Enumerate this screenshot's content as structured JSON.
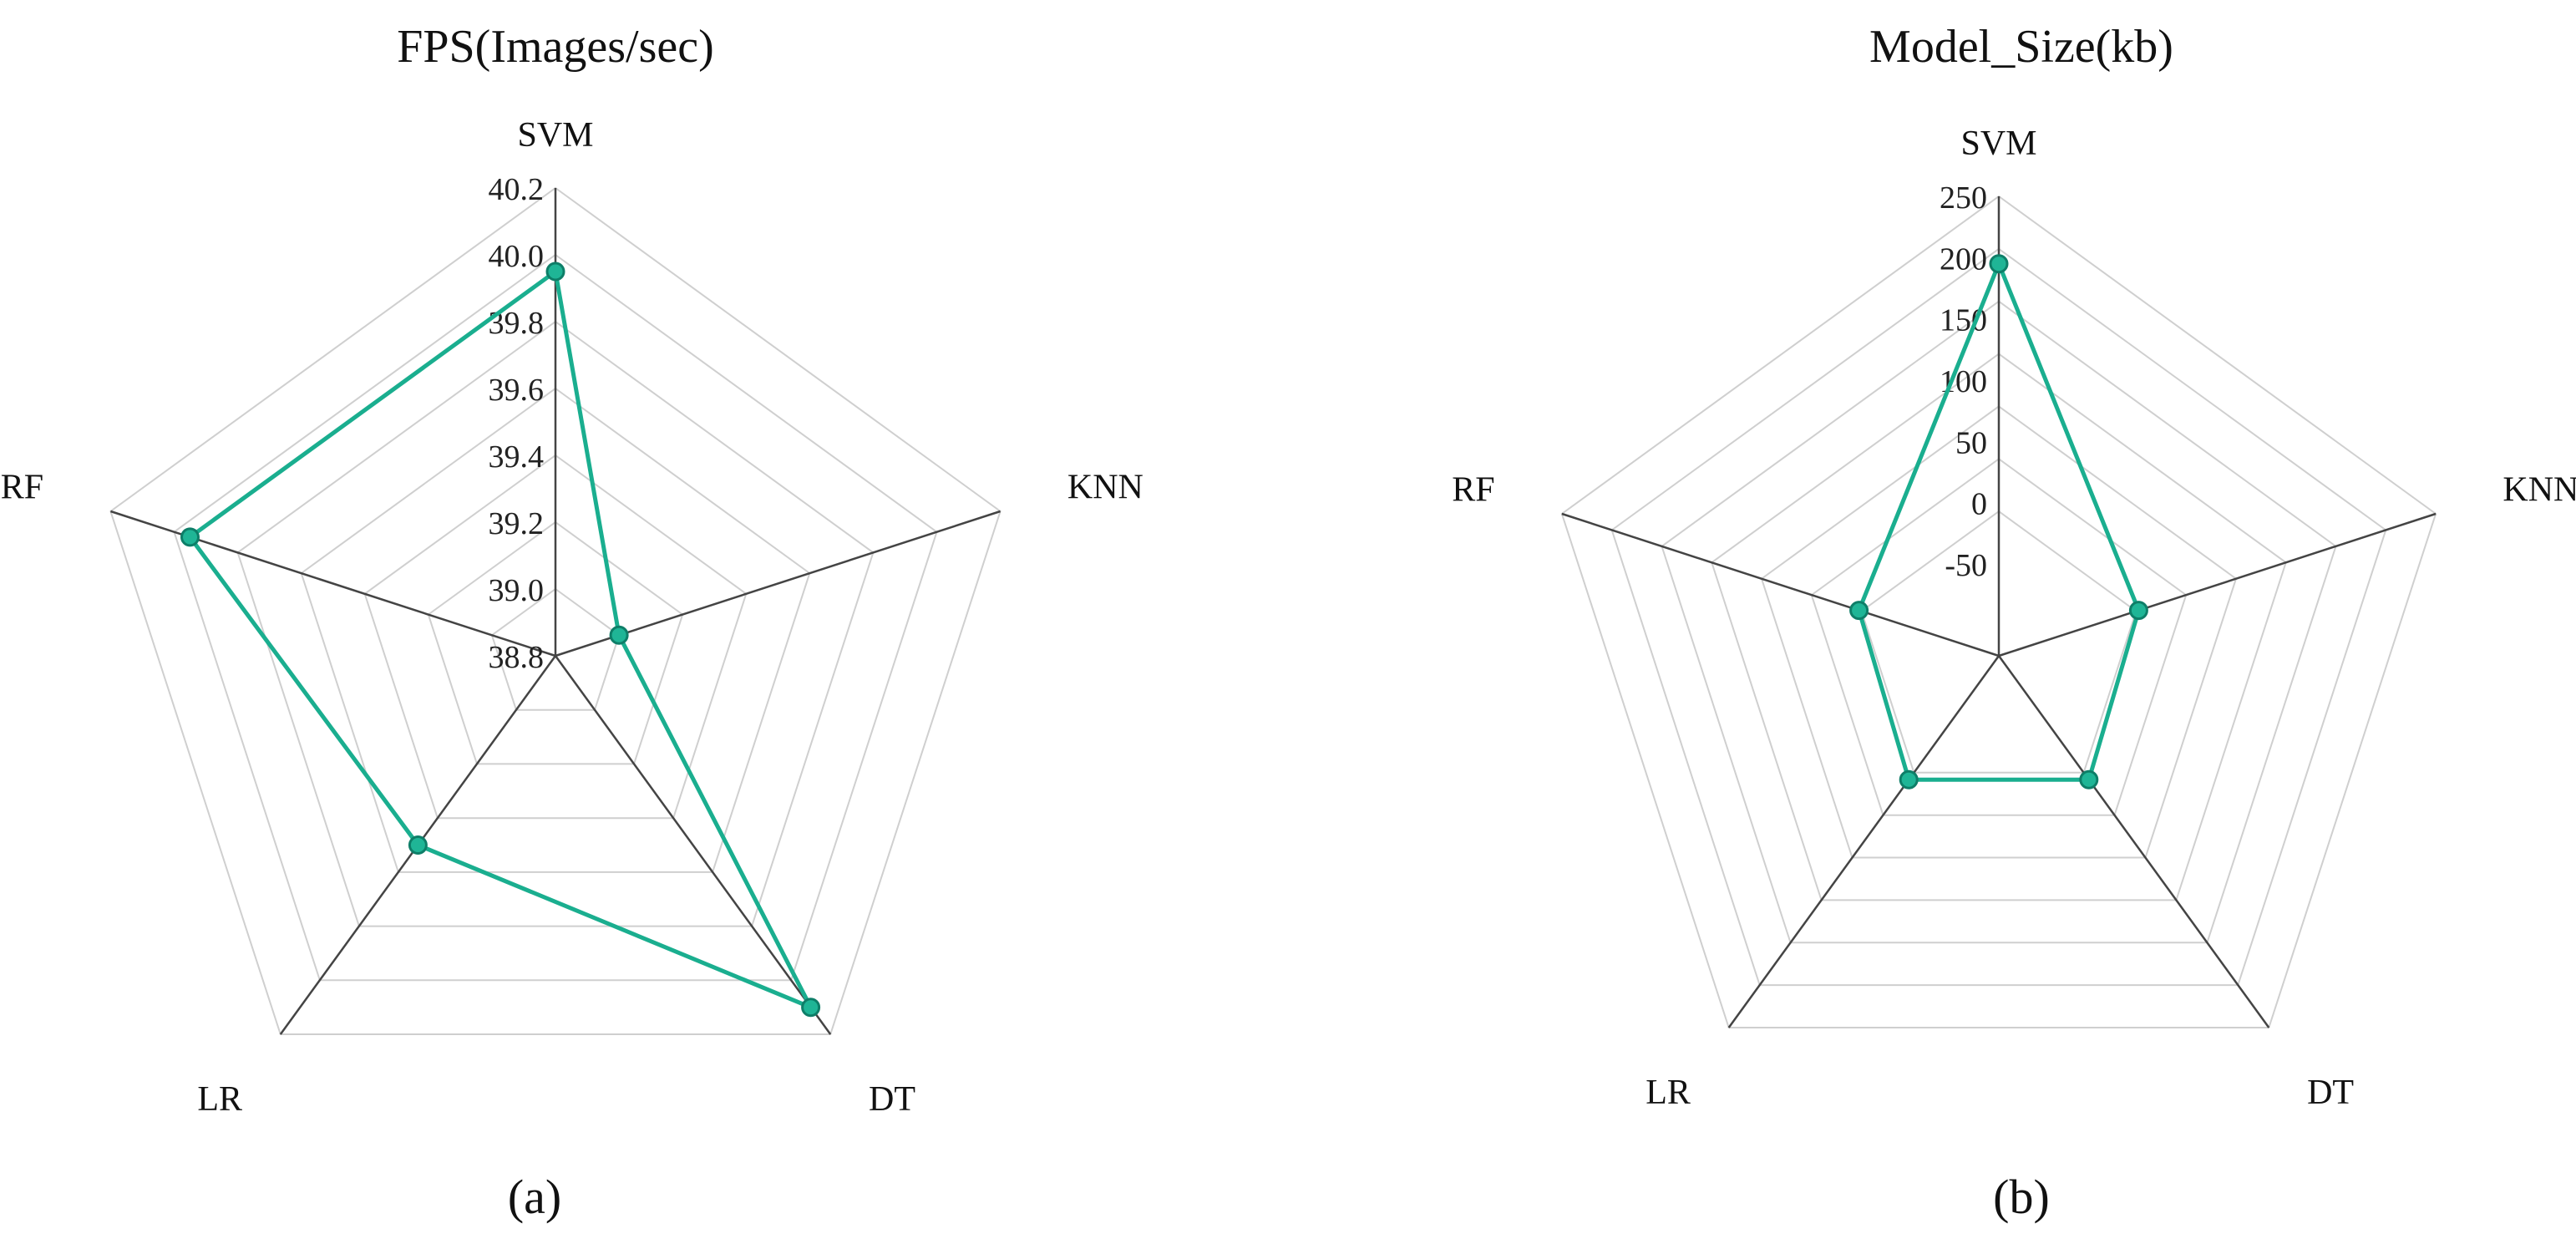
{
  "figure": {
    "colors": {
      "series": "#1aae8f",
      "marker_fill": "#1fb596",
      "grid": "#cfcfcf",
      "axis": "#444444"
    }
  },
  "chart_data": [
    {
      "type": "radar",
      "title": "FPS(Images/sec)",
      "subplot_label": "(a)",
      "categories": [
        "SVM",
        "KNN",
        "DT",
        "LR",
        "RF"
      ],
      "ticks": [
        "38.8",
        "39.0",
        "39.2",
        "39.4",
        "39.6",
        "39.8",
        "40.0",
        "40.2"
      ],
      "range": [
        38.8,
        40.2
      ],
      "grid": true,
      "series": [
        {
          "values": [
            39.95,
            39.0,
            40.1,
            39.5,
            39.95
          ]
        }
      ]
    },
    {
      "type": "radar",
      "title": "Model_Size(kb)",
      "subplot_label": "(b)",
      "categories": [
        "SVM",
        "KNN",
        "DT",
        "LR",
        "RF"
      ],
      "ticks": [
        "-50",
        "0",
        "50",
        "100",
        "150",
        "200",
        "250"
      ],
      "range": [
        -50,
        250
      ],
      "grid": true,
      "series": [
        {
          "values": [
            195,
            -5,
            0,
            0,
            -5
          ]
        }
      ]
    }
  ]
}
